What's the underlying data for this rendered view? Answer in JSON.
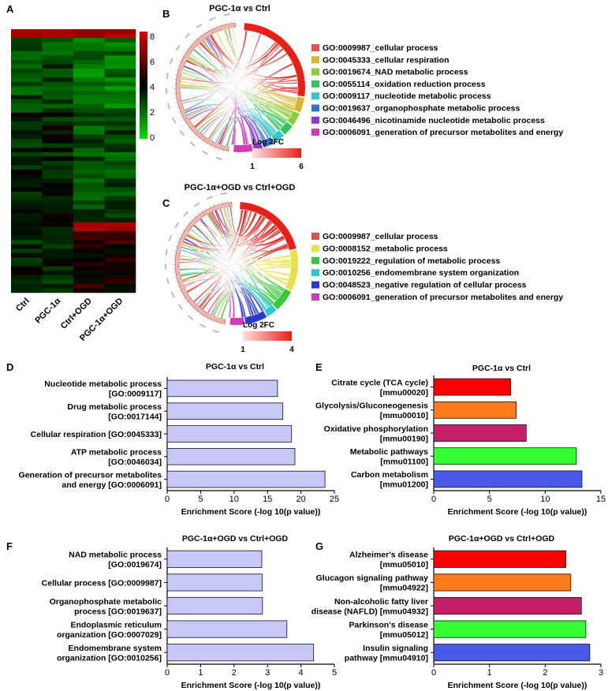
{
  "panels": {
    "A": {
      "letter": "A"
    },
    "B": {
      "letter": "B",
      "title": "PGC-1α vs Ctrl"
    },
    "C": {
      "letter": "C",
      "title": "PGC-1α+OGD vs Ctrl+OGD"
    },
    "D": {
      "letter": "D"
    },
    "E": {
      "letter": "E"
    },
    "F": {
      "letter": "F"
    },
    "G": {
      "letter": "G"
    }
  },
  "chart_data": [
    {
      "id": "A",
      "type": "heatmap",
      "columns": [
        "Ctrl",
        "PGC-1α",
        "Ctrl+OGD",
        "PGC-1α+OGD"
      ],
      "colorbar": {
        "ticks": [
          "8",
          "6",
          "4",
          "2",
          "0"
        ],
        "min": 0,
        "max": 8,
        "colors": [
          "#00e000",
          "#000000",
          "#e00000"
        ]
      }
    },
    {
      "id": "B",
      "type": "chord",
      "title": "PGC-1α vs Ctrl",
      "legend": [
        {
          "label": "GO:0009987_cellular process",
          "color": "#d9534f"
        },
        {
          "label": "GO:0045333_cellular respiration",
          "color": "#d4b72e"
        },
        {
          "label": "GO:0019674_NAD metabolic process",
          "color": "#8ccc3c"
        },
        {
          "label": "GO:0055114_oxidation reduction process",
          "color": "#2fc65a"
        },
        {
          "label": "GO:0009117_nucleotide metabolic process",
          "color": "#30c8c8"
        },
        {
          "label": "GO:0019637_organophosphate metabolic process",
          "color": "#3a70d4"
        },
        {
          "label": "GO:0046496_nicotinamide nucleotide metabolic process",
          "color": "#8a3ad0"
        },
        {
          "label": "GO:0006091_generation of precursor metabolites and energy",
          "color": "#d43ab4"
        }
      ],
      "scale": {
        "title": "Log 2FC",
        "min": "1",
        "max": "6"
      }
    },
    {
      "id": "C",
      "type": "chord",
      "title": "PGC-1α+OGD vs Ctrl+OGD",
      "legend": [
        {
          "label": "GO:0009987_cellular process",
          "color": "#d9534f"
        },
        {
          "label": "GO:0008152_metabolic process",
          "color": "#e6e04a"
        },
        {
          "label": "GO:0019222_regulation of metabolic process",
          "color": "#3cc83c"
        },
        {
          "label": "GO:0010256_endomembrane system organization",
          "color": "#30c8c8"
        },
        {
          "label": "GO:0048523_negative regulation of cellular process",
          "color": "#2a3ad0"
        },
        {
          "label": "GO:0006091_generation of precursor metabolites and energy",
          "color": "#d43ab4"
        }
      ],
      "scale": {
        "title": "Log 2FC",
        "min": "1",
        "max": "4"
      }
    },
    {
      "id": "D",
      "type": "bar",
      "orientation": "horizontal",
      "title": "PGC-1α vs Ctrl",
      "xlabel": "Enrichment Score (-log 10(p value))",
      "categories": [
        [
          "Nucleotide metabolic process",
          "[GO:0009117]"
        ],
        [
          "Drug metabolic process",
          "[GO:0017144]"
        ],
        [
          "Cellular respiration [GO:0045333]"
        ],
        [
          "ATP metabolic process",
          "[GO:0046034]"
        ],
        [
          "Generation of precursor metabolites",
          "and energy [GO:0006091]"
        ]
      ],
      "values": [
        16.5,
        17.3,
        18.6,
        19.1,
        23.6
      ],
      "xlim": [
        0,
        25
      ],
      "xticks": [
        0,
        5,
        10,
        15,
        20,
        25
      ],
      "colors": [
        "#c8c8f8"
      ]
    },
    {
      "id": "E",
      "type": "bar",
      "orientation": "horizontal",
      "title": "PGC-1α vs Ctrl",
      "xlabel": "Enrichment Score (-log 10(p value))",
      "categories": [
        [
          "Citrate cycle (TCA cycle)",
          "[mmu00020]"
        ],
        [
          "Glycolysis/Gluconeogenesis",
          "[mmu00010]"
        ],
        [
          "Oxidative phosphorylation",
          "[mmu00190]"
        ],
        [
          "Metabolic pathways",
          "[mmu01100]"
        ],
        [
          "Carbon metabolism",
          "[mmu01200]"
        ]
      ],
      "values": [
        6.9,
        7.4,
        8.3,
        12.8,
        13.3
      ],
      "xlim": [
        0,
        15
      ],
      "xticks": [
        0,
        5,
        10,
        15
      ],
      "colors": [
        "#ff0000",
        "#ff7a1a",
        "#c4206a",
        "#33ff33",
        "#4a5ae8"
      ]
    },
    {
      "id": "F",
      "type": "bar",
      "orientation": "horizontal",
      "title": "PGC-1α+OGD vs Ctrl+OGD",
      "xlabel": "Enrichment Score (-log 10(p value))",
      "categories": [
        [
          "NAD metabolic process",
          "[GO:0019674]"
        ],
        [
          "Cellular process [GO:0009987]"
        ],
        [
          "Organophosphate metabolic",
          "process [GO:0019637]"
        ],
        [
          "Endoplasmic reticulum",
          "organization [GO:0007029]"
        ],
        [
          "Endomembrane system",
          "organization [GO:0010256]"
        ]
      ],
      "values": [
        2.83,
        2.84,
        2.85,
        3.58,
        4.38
      ],
      "xlim": [
        0,
        5
      ],
      "xticks": [
        0,
        1,
        2,
        3,
        4,
        5
      ],
      "colors": [
        "#c8c8f8"
      ]
    },
    {
      "id": "G",
      "type": "bar",
      "orientation": "horizontal",
      "title": "PGC-1α+OGD vs Ctrl+OGD",
      "xlabel": "Enrichment Score (-log 10(p value))",
      "categories": [
        [
          "Alzheimer's disease",
          "[mmu05010]"
        ],
        [
          "Glucagon signaling pathway",
          "[mmu04922]"
        ],
        [
          "Non-alcoholic fatty liver",
          "disease (NAFLD) [mmu04932]"
        ],
        [
          "Parkinson's disease",
          "[mmu05012]"
        ],
        [
          "Insulin signaling",
          "pathway [mmu04910]"
        ]
      ],
      "values": [
        2.37,
        2.46,
        2.65,
        2.73,
        2.8
      ],
      "xlim": [
        0,
        3
      ],
      "xticks": [
        0,
        1,
        2,
        3
      ],
      "colors": [
        "#ff0000",
        "#ff7a1a",
        "#c4206a",
        "#33ff33",
        "#4a5ae8"
      ]
    }
  ]
}
